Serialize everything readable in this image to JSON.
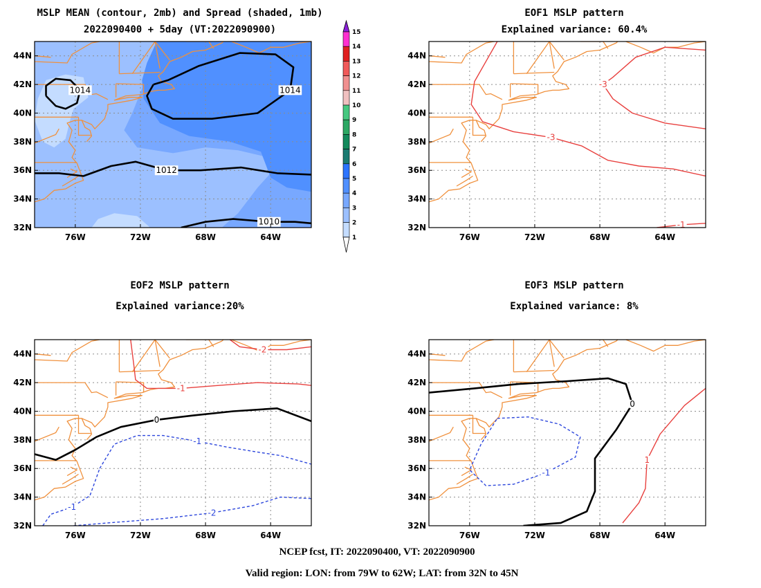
{
  "figure": {
    "footer_line1": "NCEP fcst, IT: 2022090400, VT: 2022090900",
    "footer_line2": "Valid region: LON: from 79W to 62W; LAT: from 32N to 45N"
  },
  "chart_data": [
    {
      "type": "heatmap",
      "title": "MSLP MEAN (contour, 2mb) and Spread (shaded, 1mb)",
      "subtitle": "2022090400 + 5day (VT:2022090900)",
      "xlim": [
        -78.5,
        -61.5
      ],
      "ylim": [
        32,
        45
      ],
      "x_ticks": [
        "76W",
        "72W",
        "68W",
        "64W"
      ],
      "x_tick_values": [
        -76,
        -72,
        -68,
        -64
      ],
      "y_ticks": [
        "32N",
        "34N",
        "36N",
        "38N",
        "40N",
        "42N",
        "44N"
      ],
      "y_tick_values": [
        32,
        34,
        36,
        38,
        40,
        42,
        44
      ],
      "grid": true,
      "colorbar": {
        "labels": [
          "1",
          "2",
          "3",
          "4",
          "5",
          "6",
          "7",
          "8",
          "9",
          "10",
          "11",
          "12",
          "13",
          "14",
          "15"
        ],
        "colors": [
          "#c4dcff",
          "#9cc0ff",
          "#78a8ff",
          "#5090ff",
          "#2c74ff",
          "#1b7b72",
          "#138a5c",
          "#2da864",
          "#46c880",
          "#f0c0c0",
          "#f09090",
          "#f05a5a",
          "#e02020",
          "#ff30d0",
          "#8a1fd8"
        ]
      },
      "shading": [
        {
          "spread": 3,
          "color": "#78a8ff",
          "region": "background"
        },
        {
          "spread": 2,
          "color": "#9cc0ff",
          "region": "west of 73W"
        },
        {
          "spread": 1,
          "color": "#c4dcff",
          "region": "near 77W 41N and 73W 32N"
        },
        {
          "spread": 4,
          "color": "#5090ff",
          "region": "east of 72W, north of 37N"
        }
      ],
      "contours": [
        {
          "label": "1014",
          "color": "#000000",
          "style": "solid",
          "points": [
            [
              -77.8,
              41.2
            ],
            [
              -77.2,
              40.5
            ],
            [
              -76.6,
              40.3
            ],
            [
              -75.9,
              40.7
            ],
            [
              -75.7,
              41.6
            ],
            [
              -76.3,
              42.3
            ],
            [
              -77.2,
              42.4
            ],
            [
              -77.8,
              41.9
            ],
            [
              -77.8,
              41.2
            ]
          ]
        },
        {
          "label": "1014",
          "color": "#000000",
          "style": "solid",
          "points": [
            [
              -71.2,
              42.0
            ],
            [
              -71.6,
              41.2
            ],
            [
              -71.3,
              40.3
            ],
            [
              -70.0,
              39.6
            ],
            [
              -67.6,
              39.6
            ],
            [
              -64.8,
              40.0
            ],
            [
              -62.8,
              41.6
            ],
            [
              -62.6,
              43.2
            ],
            [
              -63.7,
              44.1
            ],
            [
              -65.9,
              44.2
            ],
            [
              -68.4,
              43.3
            ],
            [
              -70.3,
              42.3
            ],
            [
              -71.2,
              42.0
            ]
          ]
        },
        {
          "label": "1012",
          "color": "#000000",
          "style": "solid",
          "points": [
            [
              -78.5,
              35.8
            ],
            [
              -77.0,
              35.8
            ],
            [
              -75.5,
              35.6
            ],
            [
              -73.8,
              36.3
            ],
            [
              -72.3,
              36.6
            ],
            [
              -70.4,
              36.0
            ],
            [
              -68.3,
              36.0
            ],
            [
              -65.8,
              36.2
            ],
            [
              -63.6,
              35.8
            ],
            [
              -61.5,
              35.7
            ]
          ]
        },
        {
          "label": "1010",
          "color": "#000000",
          "style": "solid",
          "points": [
            [
              -69.5,
              32.0
            ],
            [
              -68.0,
              32.4
            ],
            [
              -66.3,
              32.6
            ],
            [
              -64.1,
              32.4
            ],
            [
              -62.5,
              32.4
            ],
            [
              -61.5,
              32.3
            ]
          ]
        }
      ]
    },
    {
      "type": "heatmap",
      "title": "EOF1 MSLP pattern",
      "subtitle": "Explained variance: 60.4%",
      "xlim": [
        -78.5,
        -61.5
      ],
      "ylim": [
        32,
        45
      ],
      "x_ticks": [
        "76W",
        "72W",
        "68W",
        "64W"
      ],
      "x_tick_values": [
        -76,
        -72,
        -68,
        -64
      ],
      "y_ticks": [
        "32N",
        "34N",
        "36N",
        "38N",
        "40N",
        "42N",
        "44N"
      ],
      "y_tick_values": [
        32,
        34,
        36,
        38,
        40,
        42,
        44
      ],
      "grid": true,
      "contours": [
        {
          "label": "-3",
          "color": "#e8403e",
          "style": "solid",
          "points": [
            [
              -74.3,
              45.0
            ],
            [
              -74.9,
              43.8
            ],
            [
              -75.7,
              42.2
            ],
            [
              -75.9,
              40.6
            ],
            [
              -75.2,
              39.4
            ],
            [
              -73.3,
              38.7
            ],
            [
              -71.0,
              38.3
            ],
            [
              -69.1,
              37.7
            ],
            [
              -67.5,
              36.7
            ],
            [
              -65.6,
              36.3
            ],
            [
              -63.5,
              36.1
            ],
            [
              -61.5,
              35.6
            ]
          ]
        },
        {
          "label": "-3",
          "color": "#e8403e",
          "style": "solid",
          "points": [
            [
              -61.5,
              44.4
            ],
            [
              -64.0,
              44.6
            ],
            [
              -65.8,
              43.9
            ],
            [
              -67.2,
              42.5
            ],
            [
              -67.8,
              42.0
            ],
            [
              -67.2,
              41.0
            ],
            [
              -66.0,
              40.0
            ],
            [
              -64.0,
              39.3
            ],
            [
              -61.5,
              38.9
            ]
          ]
        },
        {
          "label": "-1",
          "color": "#e8403e",
          "style": "solid",
          "points": [
            [
              -64.5,
              32.0
            ],
            [
              -63.0,
              32.2
            ],
            [
              -61.5,
              32.3
            ]
          ]
        }
      ]
    },
    {
      "type": "heatmap",
      "title": "EOF2 MSLP pattern",
      "subtitle": "Explained variance:20%",
      "xlim": [
        -78.5,
        -61.5
      ],
      "ylim": [
        32,
        45
      ],
      "x_ticks": [
        "76W",
        "72W",
        "68W",
        "64W"
      ],
      "x_tick_values": [
        -76,
        -72,
        -68,
        -64
      ],
      "y_ticks": [
        "32N",
        "34N",
        "36N",
        "38N",
        "40N",
        "42N",
        "44N"
      ],
      "y_tick_values": [
        32,
        34,
        36,
        38,
        40,
        42,
        44
      ],
      "grid": true,
      "contours": [
        {
          "label": "-2",
          "color": "#e8403e",
          "style": "solid",
          "points": [
            [
              -66.5,
              45.0
            ],
            [
              -65.9,
              44.5
            ],
            [
              -64.5,
              44.3
            ],
            [
              -63.0,
              44.3
            ],
            [
              -61.5,
              44.5
            ]
          ]
        },
        {
          "label": "-1",
          "color": "#e8403e",
          "style": "solid",
          "points": [
            [
              -72.6,
              45.0
            ],
            [
              -72.4,
              43.2
            ],
            [
              -72.3,
              42.2
            ],
            [
              -71.6,
              41.6
            ],
            [
              -69.5,
              41.6
            ],
            [
              -67.2,
              41.8
            ],
            [
              -64.8,
              42.0
            ],
            [
              -62.3,
              41.9
            ],
            [
              -61.5,
              41.8
            ]
          ]
        },
        {
          "label": "0",
          "color": "#000000",
          "style": "solid",
          "points": [
            [
              -78.5,
              37.0
            ],
            [
              -77.2,
              36.6
            ],
            [
              -76.0,
              37.3
            ],
            [
              -74.7,
              38.2
            ],
            [
              -73.2,
              38.9
            ],
            [
              -71.0,
              39.4
            ],
            [
              -68.8,
              39.7
            ],
            [
              -66.3,
              40.0
            ],
            [
              -63.6,
              40.2
            ],
            [
              -61.5,
              39.3
            ]
          ]
        },
        {
          "label": "-1",
          "color": "#2c46dc",
          "style": "dashed",
          "points": [
            [
              -74.5,
              36.0
            ],
            [
              -73.6,
              37.7
            ],
            [
              -72.2,
              38.3
            ],
            [
              -70.6,
              38.3
            ],
            [
              -68.5,
              37.9
            ],
            [
              -66.7,
              37.5
            ],
            [
              -65.1,
              37.2
            ],
            [
              -63.4,
              36.9
            ],
            [
              -61.5,
              36.3
            ]
          ]
        },
        {
          "label": "-1",
          "color": "#2c46dc",
          "style": "dashed",
          "points": [
            [
              -78.0,
              32.0
            ],
            [
              -77.5,
              32.8
            ],
            [
              -76.2,
              33.3
            ],
            [
              -75.1,
              34.1
            ],
            [
              -74.5,
              36.0
            ]
          ]
        },
        {
          "label": "-2",
          "color": "#2c46dc",
          "style": "dashed",
          "points": [
            [
              -76.1,
              32.0
            ],
            [
              -74.0,
              32.2
            ],
            [
              -70.6,
              32.5
            ],
            [
              -67.6,
              32.9
            ],
            [
              -65.1,
              33.4
            ],
            [
              -63.4,
              34.0
            ],
            [
              -61.5,
              33.9
            ]
          ]
        }
      ]
    },
    {
      "type": "heatmap",
      "title": "EOF3 MSLP pattern",
      "subtitle": "Explained variance: 8%",
      "xlim": [
        -78.5,
        -61.5
      ],
      "ylim": [
        32,
        45
      ],
      "x_ticks": [
        "76W",
        "72W",
        "68W",
        "64W"
      ],
      "x_tick_values": [
        -76,
        -72,
        -68,
        -64
      ],
      "y_ticks": [
        "32N",
        "34N",
        "36N",
        "38N",
        "40N",
        "42N",
        "44N"
      ],
      "y_tick_values": [
        32,
        34,
        36,
        38,
        40,
        42,
        44
      ],
      "grid": true,
      "contours": [
        {
          "label": "0",
          "color": "#000000",
          "style": "solid",
          "points": [
            [
              -78.5,
              41.3
            ],
            [
              -75.7,
              41.6
            ],
            [
              -73.0,
              41.9
            ],
            [
              -70.0,
              42.1
            ],
            [
              -67.5,
              42.3
            ],
            [
              -66.4,
              41.9
            ],
            [
              -66.0,
              40.5
            ],
            [
              -67.0,
              38.7
            ],
            [
              -68.3,
              36.7
            ],
            [
              -68.3,
              34.4
            ],
            [
              -68.8,
              33.0
            ],
            [
              -70.4,
              32.2
            ],
            [
              -72.7,
              32.0
            ]
          ]
        },
        {
          "label": "1",
          "color": "#e8403e",
          "style": "solid",
          "points": [
            [
              -66.6,
              32.2
            ],
            [
              -65.6,
              33.6
            ],
            [
              -65.2,
              34.6
            ],
            [
              -65.1,
              36.6
            ],
            [
              -64.3,
              38.4
            ],
            [
              -62.8,
              40.4
            ],
            [
              -61.5,
              41.6
            ]
          ]
        },
        {
          "label": "-1",
          "color": "#2c46dc",
          "style": "dashed",
          "points": [
            [
              -74.3,
              39.5
            ],
            [
              -72.4,
              39.6
            ],
            [
              -70.5,
              39.1
            ],
            [
              -69.2,
              38.2
            ],
            [
              -69.5,
              36.8
            ],
            [
              -71.3,
              35.7
            ],
            [
              -73.3,
              34.9
            ],
            [
              -75.0,
              34.8
            ],
            [
              -76.0,
              35.9
            ],
            [
              -75.3,
              37.7
            ],
            [
              -74.3,
              39.5
            ]
          ]
        }
      ]
    }
  ]
}
